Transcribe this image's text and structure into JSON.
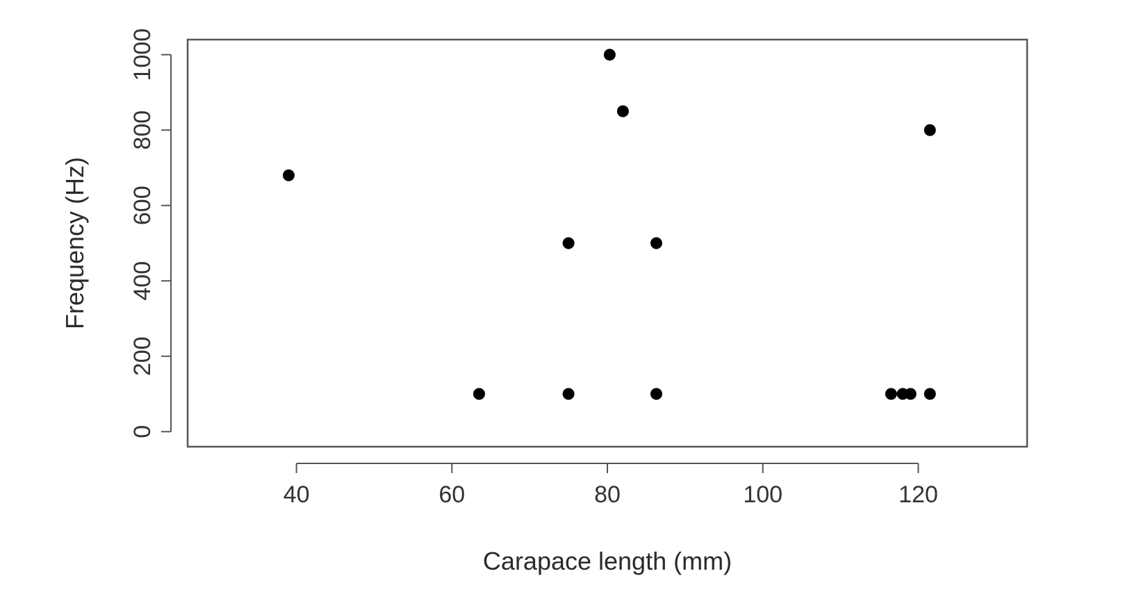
{
  "chart_data": {
    "type": "scatter",
    "title": "",
    "xlabel": "Carapace length (mm)",
    "ylabel": "Frequency (Hz)",
    "xlim": [
      26,
      134
    ],
    "ylim": [
      -40,
      1040
    ],
    "x_ticks": [
      40,
      60,
      80,
      100,
      120
    ],
    "y_ticks": [
      0,
      200,
      400,
      600,
      800,
      1000
    ],
    "grid": false,
    "legend": "none",
    "marker_color": "#000000",
    "series": [
      {
        "points": [
          {
            "x": 39,
            "y": 680
          },
          {
            "x": 63.5,
            "y": 100
          },
          {
            "x": 75,
            "y": 500
          },
          {
            "x": 75,
            "y": 100
          },
          {
            "x": 80.3,
            "y": 1000
          },
          {
            "x": 82,
            "y": 850
          },
          {
            "x": 86.3,
            "y": 500
          },
          {
            "x": 86.3,
            "y": 100
          },
          {
            "x": 116.5,
            "y": 100
          },
          {
            "x": 118,
            "y": 100
          },
          {
            "x": 119,
            "y": 100
          },
          {
            "x": 121.5,
            "y": 800
          },
          {
            "x": 121.5,
            "y": 100
          }
        ]
      }
    ]
  }
}
